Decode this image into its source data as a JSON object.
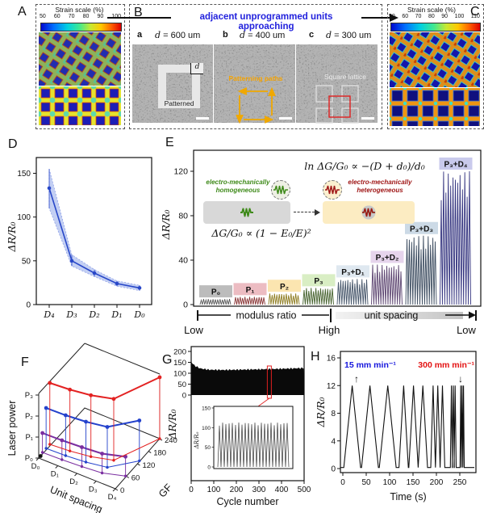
{
  "panelA": {
    "label": "A",
    "title": "Strain scale (%)",
    "ticks": [
      "50",
      "60",
      "70",
      "80",
      "90",
      "100"
    ]
  },
  "panelB": {
    "label": "B",
    "header": "adjacent unprogrammed units approaching",
    "subs": [
      {
        "key": "a",
        "var": "d",
        "eq": " = 600 um"
      },
      {
        "key": "b",
        "var": "d",
        "eq": " = 400 um"
      },
      {
        "key": "c",
        "var": "d",
        "eq": " = 300 um"
      }
    ],
    "patterned": "Patterned",
    "d_marker": "d",
    "paths": "Patterning paths",
    "lattice": "Square lattice"
  },
  "panelC": {
    "label": "C",
    "title": "Strain scale (%)",
    "ticks": [
      "50",
      "60",
      "70",
      "80",
      "90",
      "100",
      "110"
    ]
  },
  "panelD": {
    "label": "D"
  },
  "panelE": {
    "label": "E",
    "equation_top": "ln ΔG/G₀ ∝ −(D + d₀)/d₀",
    "equation_bottom": "ΔG/G₀ ∝ (1 − E₀/E)²",
    "homogeneous_label": "electro-mechanically homogeneous",
    "heterogeneous_label": "electro-mechanically heterogeneous",
    "axis_left": "Low",
    "axis_mid": "modulus ratio",
    "axis_high": "High",
    "axis_right_label": "unit spacing",
    "axis_right": "Low"
  },
  "panelF": {
    "label": "F"
  },
  "panelG": {
    "label": "G"
  },
  "panelH": {
    "label": "H"
  },
  "chart_data": [
    {
      "id": "D",
      "type": "line",
      "ylabel": "ΔR/R₀",
      "ylim": [
        0,
        168
      ],
      "yticks": [
        0,
        50,
        100,
        150
      ],
      "categories": [
        "D₄",
        "D₃",
        "D₂",
        "D₁",
        "D₀"
      ],
      "values": [
        133,
        50,
        36,
        24,
        19
      ],
      "band_upper": [
        155,
        57,
        40,
        27,
        22
      ],
      "band_lower": [
        110,
        44,
        32,
        21,
        16
      ],
      "line_color": "#2847c8",
      "band_color": "#aabbee"
    },
    {
      "id": "E",
      "type": "bar-spikes",
      "ylabel": "ΔR/R₀",
      "ylim": [
        0,
        140
      ],
      "yticks": [
        0,
        40,
        80,
        120
      ],
      "groups": [
        {
          "label": "P₀",
          "value": 5,
          "chip": "#bcbcbc",
          "spike": "#5a5a5a"
        },
        {
          "label": "P₁",
          "value": 7,
          "chip": "#ecbcc2",
          "spike": "#8c3a3a"
        },
        {
          "label": "P₂",
          "value": 10,
          "chip": "#fbe5b0",
          "spike": "#8f7d22"
        },
        {
          "label": "P₃",
          "value": 15,
          "chip": "#d9eec4",
          "spike": "#47632f"
        },
        {
          "label": "P₃+D₁",
          "value": 23,
          "chip": "#dfe8f0",
          "spike": "#46566a"
        },
        {
          "label": "P₃+D₂",
          "value": 36,
          "chip": "#e6d4ec",
          "spike": "#5c4470"
        },
        {
          "label": "P₃+D₃",
          "value": 62,
          "chip": "#ccdae6",
          "spike": "#3a4a5e"
        },
        {
          "label": "P₃+D₄",
          "value": 120,
          "chip": "#c9caec",
          "spike": "#32327e"
        }
      ]
    },
    {
      "id": "F",
      "type": "scatter3d",
      "zlabel": "Laser power",
      "xlabel": "Unit spacing",
      "gf_label": "GF",
      "x_ticks": [
        "D₀",
        "D₁",
        "D₂",
        "D₃",
        "D₄"
      ],
      "z_ticks": [
        "P₀",
        "P₁",
        "P₂",
        "P₃"
      ],
      "gf_ticks": [
        0,
        60,
        120,
        180,
        240
      ],
      "series": [
        {
          "name": "P₁",
          "color": "#7a2ea0",
          "level": 1,
          "gf": [
            20,
            22,
            26,
            32,
            55
          ]
        },
        {
          "name": "P₂",
          "color": "#2442cc",
          "level": 2,
          "gf": [
            40,
            42,
            48,
            60,
            130
          ]
        },
        {
          "name": "P₃",
          "color": "#e32222",
          "level": 3,
          "gf": [
            60,
            65,
            75,
            95,
            240
          ]
        },
        {
          "name": "P₀",
          "color": "#111111",
          "level": 0,
          "gf": [
            10
          ]
        }
      ]
    },
    {
      "id": "G",
      "type": "area-cycles",
      "ylabel": "ΔR/R₀",
      "xlabel": "Cycle number",
      "yticks": [
        0,
        50,
        100,
        150,
        200
      ],
      "xticks": [
        0,
        100,
        200,
        300,
        400,
        500
      ],
      "envelope": [
        [
          0,
          152
        ],
        [
          15,
          135
        ],
        [
          40,
          122
        ],
        [
          80,
          116
        ],
        [
          150,
          115
        ],
        [
          250,
          117
        ],
        [
          350,
          119
        ],
        [
          450,
          122
        ],
        [
          500,
          124
        ]
      ],
      "highlight_cycle": 346,
      "inset": {
        "ylabel": "ΔR/R₀",
        "yticks": [
          0,
          50,
          100,
          150
        ],
        "n_cycles": 22,
        "peak": 113
      }
    },
    {
      "id": "H",
      "type": "line-peaks",
      "ylabel": "ΔR/R₀",
      "xlabel": "Time (s)",
      "yticks": [
        0,
        4,
        8,
        12,
        16
      ],
      "xticks": [
        0,
        50,
        100,
        150,
        200,
        250
      ],
      "peak_height": 12,
      "peaks": [
        {
          "t": 20,
          "w": 18
        },
        {
          "t": 58,
          "w": 18
        },
        {
          "t": 96,
          "w": 18
        },
        {
          "t": 130,
          "w": 10
        },
        {
          "t": 151,
          "w": 10
        },
        {
          "t": 171,
          "w": 10
        },
        {
          "t": 193,
          "w": 5
        },
        {
          "t": 203,
          "w": 5
        },
        {
          "t": 213,
          "w": 5
        },
        {
          "t": 232,
          "w": 2.2
        },
        {
          "t": 236,
          "w": 2.2
        },
        {
          "t": 240,
          "w": 2.2
        },
        {
          "t": 252,
          "w": 1.5
        },
        {
          "t": 255,
          "w": 1.5
        },
        {
          "t": 258,
          "w": 1.5
        }
      ],
      "annotations": [
        {
          "text": "15 mm min⁻¹",
          "color": "#1515dd",
          "arrow": "↑"
        },
        {
          "text": "300 mm min⁻¹",
          "color": "#e31212",
          "arrow": "↓"
        }
      ]
    }
  ]
}
